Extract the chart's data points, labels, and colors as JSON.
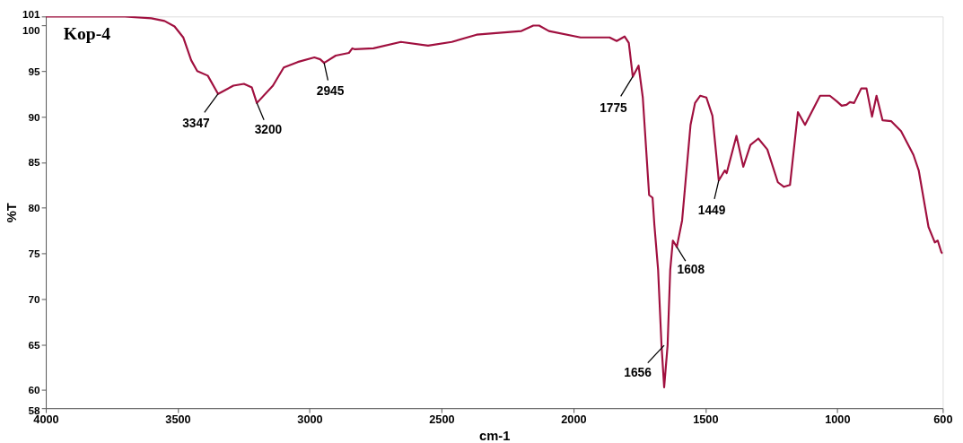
{
  "chart_data": {
    "type": "line",
    "title": "Kop-4",
    "xlabel": "cm-1",
    "ylabel": "%T",
    "xlim": [
      4000,
      600
    ],
    "xticks": [
      4000,
      3500,
      3000,
      2500,
      2000,
      1500,
      1000,
      600
    ],
    "ylim": [
      58,
      101
    ],
    "yticks": [
      58,
      60,
      65,
      70,
      75,
      80,
      85,
      90,
      95,
      100,
      101
    ],
    "grid": false,
    "marker": "none",
    "line_style": "solid",
    "series": [
      {
        "color": "#a0103f",
        "x": [
          4000,
          3850,
          3700,
          3600,
          3550,
          3512,
          3479,
          3449,
          3426,
          3386,
          3347,
          3289,
          3249,
          3219,
          3200,
          3139,
          3098,
          3045,
          2982,
          2960,
          2945,
          2901,
          2851,
          2838,
          2828,
          2758,
          2654,
          2551,
          2461,
          2367,
          2197,
          2152,
          2130,
          2093,
          1973,
          1863,
          1836,
          1806,
          1790,
          1775,
          1753,
          1737,
          1713,
          1700,
          1693,
          1679,
          1666,
          1656,
          1643,
          1633,
          1623,
          1608,
          1588,
          1556,
          1539,
          1519,
          1496,
          1473,
          1449,
          1426,
          1419,
          1382,
          1356,
          1329,
          1299,
          1265,
          1225,
          1202,
          1179,
          1149,
          1122,
          1065,
          1028,
          1002,
          983,
          965,
          952,
          936,
          909,
          889,
          868,
          851,
          828,
          795,
          758,
          711,
          691,
          654,
          630,
          619,
          605,
          600
        ],
        "values": [
          101.0,
          101.0,
          101.0,
          100.8,
          100.5,
          99.9,
          98.7,
          96.2,
          95.0,
          94.5,
          92.5,
          93.4,
          93.6,
          93.2,
          91.5,
          93.4,
          95.4,
          96.0,
          96.5,
          96.3,
          95.9,
          96.7,
          97.0,
          97.5,
          97.4,
          97.5,
          98.2,
          97.8,
          98.2,
          99.0,
          99.4,
          100.0,
          100.0,
          99.4,
          98.7,
          98.7,
          98.3,
          98.8,
          98.1,
          94.4,
          95.6,
          92.1,
          81.4,
          81.1,
          78.1,
          73.2,
          64.9,
          60.3,
          64.9,
          73.2,
          76.4,
          75.7,
          78.6,
          89.1,
          91.5,
          92.3,
          92.1,
          90.1,
          83.0,
          84.1,
          83.8,
          87.9,
          84.5,
          86.9,
          87.6,
          86.4,
          82.8,
          82.3,
          82.5,
          90.5,
          89.1,
          92.3,
          92.3,
          91.7,
          91.2,
          91.3,
          91.6,
          91.5,
          93.1,
          93.1,
          90.0,
          92.3,
          89.6,
          89.5,
          88.4,
          85.8,
          84.1,
          77.9,
          76.2,
          76.4,
          75.1,
          75.0
        ]
      }
    ],
    "annotations": [
      {
        "text": "3347",
        "x": 3347,
        "y": 92.5
      },
      {
        "text": "3200",
        "x": 3200,
        "y": 91.5
      },
      {
        "text": "2945",
        "x": 2945,
        "y": 95.9
      },
      {
        "text": "1775",
        "x": 1775,
        "y": 94.4
      },
      {
        "text": "1656",
        "x": 1656,
        "y": 64.9
      },
      {
        "text": "1608",
        "x": 1608,
        "y": 75.7
      },
      {
        "text": "1449",
        "x": 1449,
        "y": 83.0
      }
    ]
  }
}
